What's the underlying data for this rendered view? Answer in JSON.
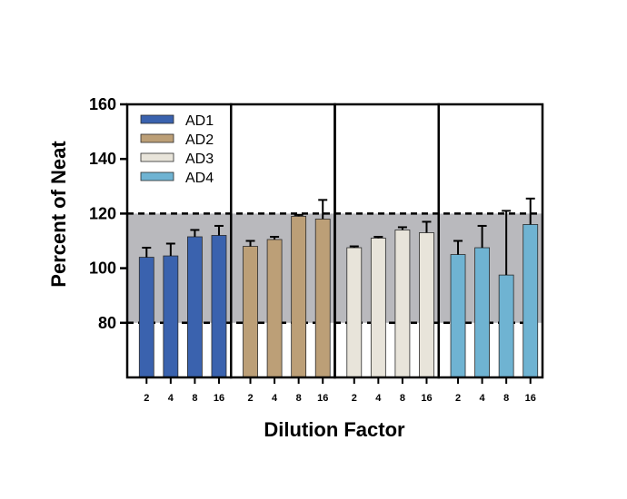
{
  "chart_data": {
    "type": "bar",
    "title": "",
    "xlabel": "Dilution Factor",
    "ylabel": "Percent of Neat",
    "ylim": [
      60,
      160
    ],
    "y_ticks": [
      80,
      100,
      120,
      140,
      160
    ],
    "categories": [
      "2",
      "4",
      "8",
      "16"
    ],
    "acceptance_range": [
      80,
      120
    ],
    "band_color": "#b9b9bd",
    "legend_position": "top-left",
    "series": [
      {
        "name": "AD1",
        "color": "#3a62ae",
        "values": [
          104,
          104.5,
          111.5,
          112
        ],
        "errors": [
          3.5,
          4.5,
          2.5,
          3.5
        ]
      },
      {
        "name": "AD2",
        "color": "#bc9f77",
        "values": [
          108,
          110.5,
          119,
          118
        ],
        "errors": [
          2,
          1,
          0.5,
          7
        ]
      },
      {
        "name": "AD3",
        "color": "#e8e4da",
        "values": [
          107.5,
          111,
          114,
          113
        ],
        "errors": [
          0.5,
          0.5,
          1,
          4
        ]
      },
      {
        "name": "AD4",
        "color": "#6fb3d2",
        "values": [
          105,
          107.5,
          97.5,
          116
        ],
        "errors": [
          5,
          8,
          23.5,
          9.5
        ]
      }
    ]
  }
}
